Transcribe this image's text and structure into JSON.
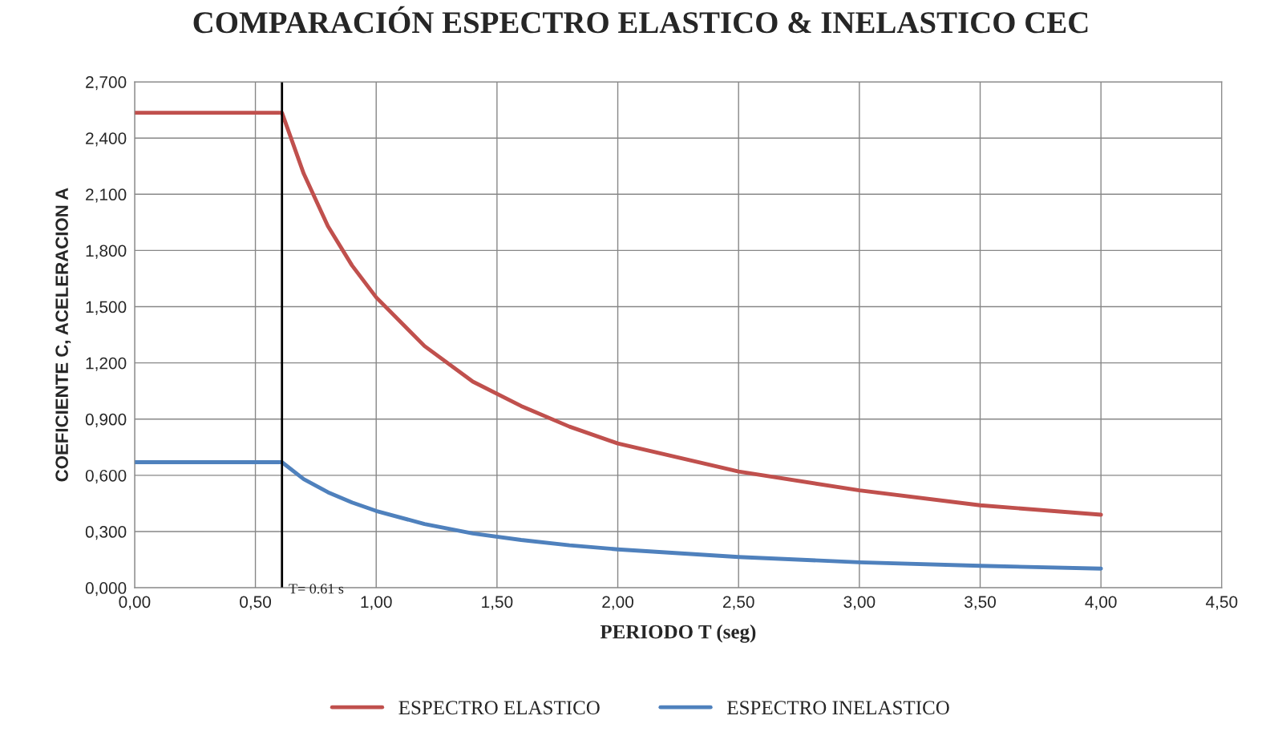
{
  "chart_data": {
    "type": "line",
    "title": "COMPARACIÓN ESPECTRO ELASTICO & INELASTICO CEC",
    "xlabel": "PERIODO T (seg)",
    "ylabel": "COEFICIENTE C, ACELERACION A",
    "x": [
      0,
      0.61,
      0.7,
      0.8,
      0.9,
      1.0,
      1.2,
      1.4,
      1.6,
      1.8,
      2.0,
      2.5,
      3.0,
      3.5,
      4.0
    ],
    "series": [
      {
        "name": "ESPECTRO ELASTICO",
        "color": "#c0504d",
        "values": [
          2.535,
          2.535,
          2.21,
          1.93,
          1.72,
          1.55,
          1.29,
          1.1,
          0.97,
          0.86,
          0.77,
          0.62,
          0.52,
          0.44,
          0.39
        ]
      },
      {
        "name": "ESPECTRO INELASTICO",
        "color": "#4f81bd",
        "values": [
          0.67,
          0.67,
          0.58,
          0.51,
          0.455,
          0.41,
          0.34,
          0.29,
          0.255,
          0.227,
          0.205,
          0.164,
          0.136,
          0.117,
          0.102
        ]
      }
    ],
    "xlim": [
      0,
      4.5
    ],
    "ylim": [
      0,
      2.7
    ],
    "xticks": [
      {
        "value": 0,
        "label": "0,00"
      },
      {
        "value": 0.5,
        "label": "0,50"
      },
      {
        "value": 1,
        "label": "1,00"
      },
      {
        "value": 1.5,
        "label": "1,50"
      },
      {
        "value": 2,
        "label": "2,00"
      },
      {
        "value": 2.5,
        "label": "2,50"
      },
      {
        "value": 3,
        "label": "3,00"
      },
      {
        "value": 3.5,
        "label": "3,50"
      },
      {
        "value": 4,
        "label": "4,00"
      },
      {
        "value": 4.5,
        "label": "4,50"
      }
    ],
    "yticks": [
      {
        "value": 0,
        "label": "0,000"
      },
      {
        "value": 0.3,
        "label": "0,300"
      },
      {
        "value": 0.6,
        "label": "0,600"
      },
      {
        "value": 0.9,
        "label": "0,900"
      },
      {
        "value": 1.2,
        "label": "1,200"
      },
      {
        "value": 1.5,
        "label": "1,500"
      },
      {
        "value": 1.8,
        "label": "1,800"
      },
      {
        "value": 2.1,
        "label": "2,100"
      },
      {
        "value": 2.4,
        "label": "2,400"
      },
      {
        "value": 2.7,
        "label": "2,700"
      }
    ],
    "ref_lines": [
      {
        "axis": "x",
        "value": 0.61,
        "label": "T= 0.61 s",
        "color": "#000000"
      }
    ],
    "grid": true,
    "legend": "bottom",
    "marker": "none",
    "line_style": "solid"
  }
}
